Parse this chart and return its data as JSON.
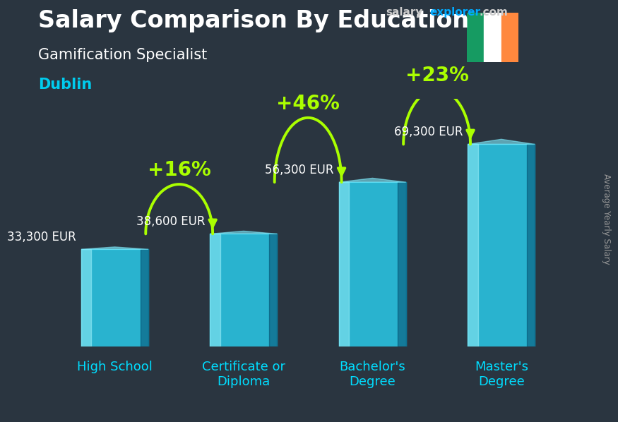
{
  "title_main": "Salary Comparison By Education",
  "subtitle1": "Gamification Specialist",
  "subtitle2": "Dublin",
  "ylabel_right": "Average Yearly Salary",
  "categories": [
    "High School",
    "Certificate or\nDiploma",
    "Bachelor's\nDegree",
    "Master's\nDegree"
  ],
  "values": [
    33300,
    38600,
    56300,
    69300
  ],
  "value_labels": [
    "33,300 EUR",
    "38,600 EUR",
    "56,300 EUR",
    "69,300 EUR"
  ],
  "pct_labels": [
    "+16%",
    "+46%",
    "+23%"
  ],
  "bar_color_cyan": "#29d0f0",
  "bar_color_dark": "#0088bb",
  "bar_alpha": 0.82,
  "bg_color": "#2a3540",
  "title_color": "#ffffff",
  "subtitle1_color": "#ffffff",
  "subtitle2_color": "#00ccee",
  "value_label_color": "#ffffff",
  "pct_label_color": "#aaff00",
  "arrow_color": "#aaff00",
  "cat_label_color": "#00ddff",
  "watermark_salary_color": "#cccccc",
  "watermark_explorer_color": "#00aaff",
  "watermark_com_color": "#cccccc",
  "flag_green": "#169b62",
  "flag_white": "#ffffff",
  "flag_orange": "#ff883e",
  "ylim_max": 85000,
  "title_fontsize": 24,
  "subtitle1_fontsize": 15,
  "subtitle2_fontsize": 15,
  "value_label_fontsize": 12,
  "pct_label_fontsize": 20,
  "cat_label_fontsize": 13,
  "watermark_fontsize": 11
}
